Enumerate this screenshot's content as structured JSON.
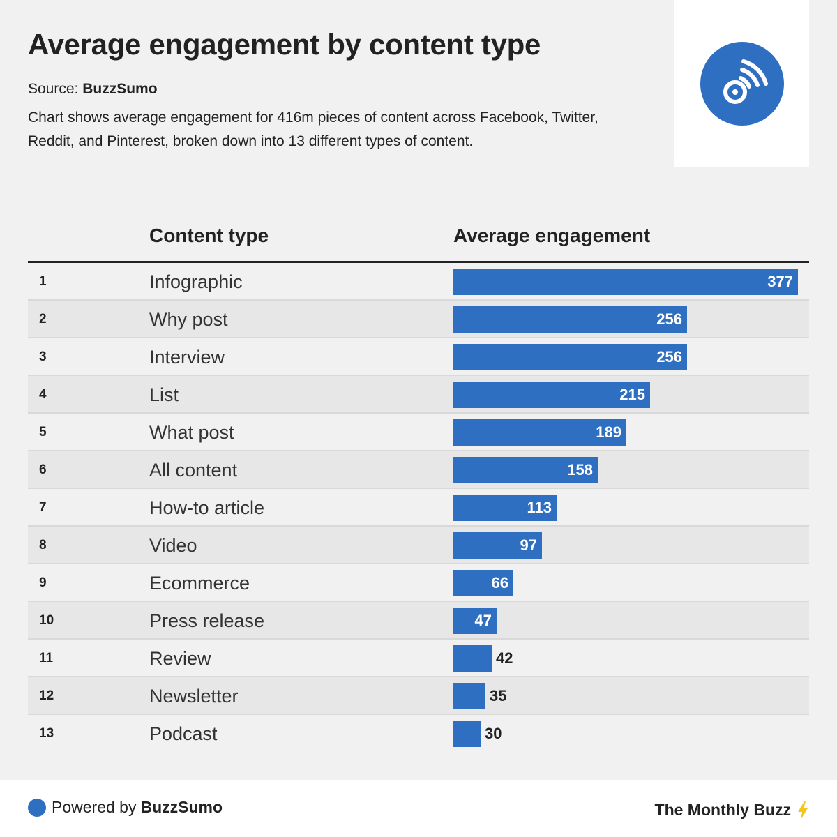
{
  "header": {
    "title": "Average engagement by content type",
    "source_prefix": "Source:",
    "source_name": "BuzzSumo",
    "description": "Chart shows average engagement for 416m pieces of content across Facebook, Twitter, Reddit, and Pinterest, broken down into 13 different types of content."
  },
  "columns": {
    "content_type": "Content type",
    "average_engagement": "Average engagement"
  },
  "colors": {
    "bar": "#2f6fc2",
    "background": "#f1f1f1",
    "row_alt": "#e7e7e7"
  },
  "footer": {
    "powered_prefix": "Powered by",
    "powered_brand": "BuzzSumo",
    "newsletter": "The Monthly Buzz",
    "bolt_icon": "lightning-bolt-icon",
    "logo_icon": "buzzsumo-signal-icon"
  },
  "chart_data": {
    "type": "bar",
    "orientation": "horizontal",
    "title": "Average engagement by content type",
    "ranks": [
      "1",
      "2",
      "3",
      "4",
      "5",
      "6",
      "7",
      "8",
      "9",
      "10",
      "11",
      "12",
      "13"
    ],
    "categories": [
      "Infographic",
      "Why post",
      "Interview",
      "List",
      "What post",
      "All content",
      "How-to article",
      "Video",
      "Ecommerce",
      "Press release",
      "Review",
      "Newsletter",
      "Podcast"
    ],
    "values": [
      377,
      256,
      256,
      215,
      189,
      158,
      113,
      97,
      66,
      47,
      42,
      35,
      30
    ],
    "xlim": [
      0,
      377
    ],
    "grid": false,
    "legend": "none"
  }
}
